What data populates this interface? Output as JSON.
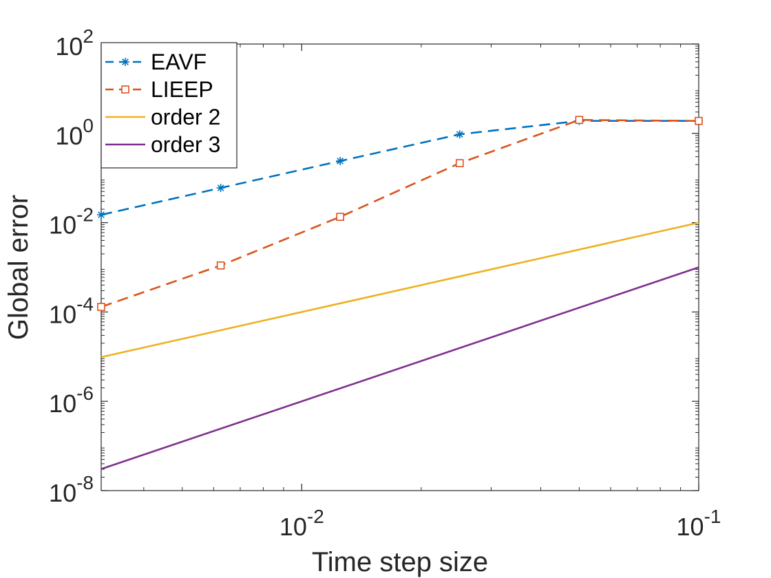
{
  "chart_data": {
    "type": "line",
    "title": "",
    "xlabel": "Time step size",
    "ylabel": "Global error",
    "xscale": "log",
    "yscale": "log",
    "xlim": [
      0.003125,
      0.1
    ],
    "ylim": [
      1e-08,
      100
    ],
    "grid": false,
    "legend_position": "top-left",
    "x_ticks": [
      {
        "value": 0.01,
        "base": "10",
        "exp": "-2"
      },
      {
        "value": 0.1,
        "base": "10",
        "exp": "-1"
      }
    ],
    "y_ticks": [
      {
        "value": 1e-08,
        "base": "10",
        "exp": "-8"
      },
      {
        "value": 1e-06,
        "base": "10",
        "exp": "-6"
      },
      {
        "value": 0.0001,
        "base": "10",
        "exp": "-4"
      },
      {
        "value": 0.01,
        "base": "10",
        "exp": "-2"
      },
      {
        "value": 1,
        "base": "10",
        "exp": "0"
      },
      {
        "value": 100,
        "base": "10",
        "exp": "2"
      }
    ],
    "series": [
      {
        "name": "EAVF",
        "color": "#0072BD",
        "line_style": "dashed",
        "marker": "asterisk",
        "x": [
          0.003125,
          0.00625,
          0.0125,
          0.025,
          0.05,
          0.1
        ],
        "y": [
          0.015,
          0.06,
          0.24,
          0.95,
          1.9,
          1.9
        ]
      },
      {
        "name": "LIEEP",
        "color": "#D95319",
        "line_style": "dashed",
        "marker": "square",
        "x": [
          0.003125,
          0.00625,
          0.0125,
          0.025,
          0.05,
          0.1
        ],
        "y": [
          0.00013,
          0.0011,
          0.0135,
          0.215,
          2.0,
          1.9
        ]
      },
      {
        "name": "order 2",
        "color": "#EDB120",
        "line_style": "solid",
        "marker": "none",
        "x": [
          0.003125,
          0.1
        ],
        "y": [
          9.77e-06,
          0.01
        ]
      },
      {
        "name": "order 3",
        "color": "#7E2F8E",
        "line_style": "solid",
        "marker": "none",
        "x": [
          0.003125,
          0.1
        ],
        "y": [
          3.05e-08,
          0.001
        ]
      }
    ]
  }
}
